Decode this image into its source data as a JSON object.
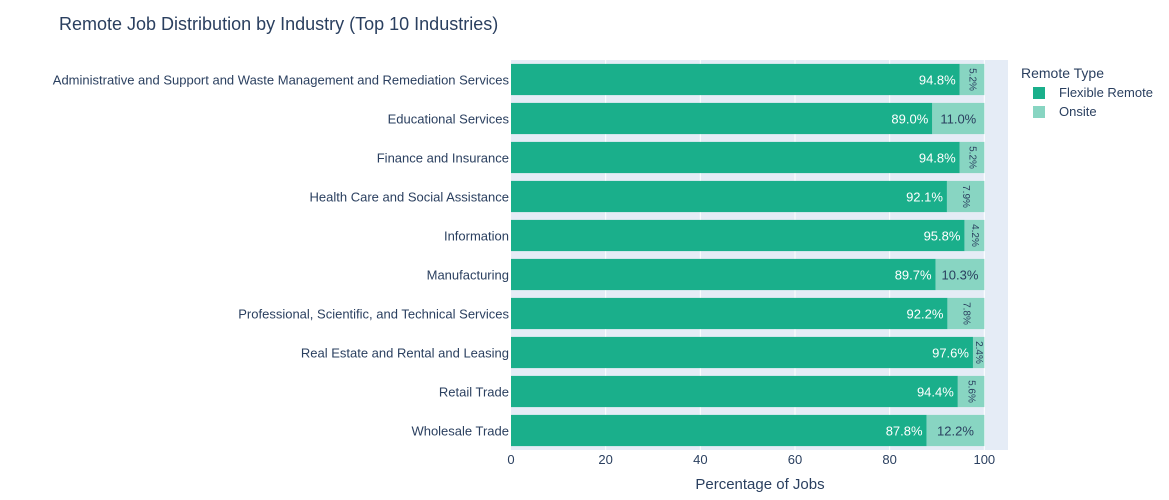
{
  "chart_data": {
    "type": "bar",
    "orientation": "horizontal",
    "stacked": true,
    "title": "Remote Job Distribution by Industry (Top 10 Industries)",
    "xlabel": "Percentage of Jobs",
    "ylabel": "",
    "xlim": [
      0,
      105
    ],
    "xticks": [
      0,
      20,
      40,
      60,
      80,
      100
    ],
    "grid": true,
    "legend": {
      "title": "Remote Type",
      "placement": "right-top"
    },
    "categories": [
      "Administrative and Support and Waste Management and Remediation Services",
      "Educational Services",
      "Finance and Insurance",
      "Health Care and Social Assistance",
      "Information",
      "Manufacturing",
      "Professional, Scientific, and Technical Services",
      "Real Estate and Rental and Leasing",
      "Retail Trade",
      "Wholesale Trade"
    ],
    "series": [
      {
        "name": "Flexible Remote",
        "color": "#1aaf8b",
        "values": [
          94.8,
          89.0,
          94.8,
          92.1,
          95.8,
          89.7,
          92.2,
          97.6,
          94.4,
          87.8
        ],
        "labels": [
          "94.8%",
          "89.0%",
          "94.8%",
          "92.1%",
          "95.8%",
          "89.7%",
          "92.2%",
          "97.6%",
          "94.4%",
          "87.8%"
        ]
      },
      {
        "name": "Onsite",
        "color": "#88d5c2",
        "values": [
          5.2,
          11.0,
          5.2,
          7.9,
          4.2,
          10.3,
          7.8,
          2.4,
          5.6,
          12.2
        ],
        "labels": [
          "5.2%",
          "11.0%",
          "5.2%",
          "7.9%",
          "4.2%",
          "10.3%",
          "7.8%",
          "2.4%",
          "5.6%",
          "12.2%"
        ]
      }
    ]
  }
}
